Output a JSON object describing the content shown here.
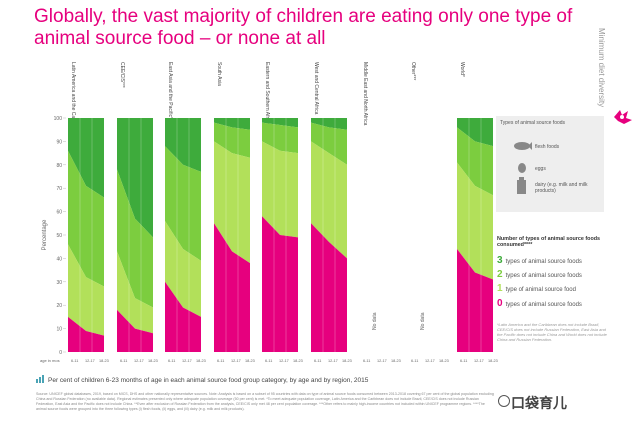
{
  "title": "Globally, the vast majority of children are eating only one type of animal source food – or none at all",
  "side_title": "Minimum diet diversity",
  "colors": {
    "zero": "#e6007e",
    "one": "#b2e05a",
    "two": "#7ccd3f",
    "three": "#3eab3c",
    "title": "#e6007e"
  },
  "chart_data": {
    "type": "area",
    "ylabel": "Percentage",
    "ylim": [
      0,
      100
    ],
    "yticks": [
      0,
      10,
      20,
      30,
      40,
      50,
      60,
      70,
      80,
      90,
      100
    ],
    "age_row_label": "age in mos",
    "age_groups": [
      "6-11",
      "12-17",
      "18-23"
    ],
    "groups": [
      {
        "name": "Latin America and the Caribbean*",
        "zero": [
          15,
          9,
          7
        ],
        "one": [
          46,
          32,
          28
        ],
        "two": [
          86,
          71,
          66
        ]
      },
      {
        "name": "CEE/CIS***",
        "zero": [
          18,
          10,
          8
        ],
        "one": [
          43,
          23,
          19
        ],
        "two": [
          78,
          57,
          49
        ]
      },
      {
        "name": "East Asia and the Pacific*",
        "zero": [
          30,
          19,
          15
        ],
        "one": [
          56,
          44,
          39
        ],
        "two": [
          88,
          80,
          77
        ]
      },
      {
        "name": "South Asia",
        "zero": [
          55,
          43,
          38
        ],
        "one": [
          90,
          85,
          83
        ],
        "two": [
          98,
          96,
          95
        ]
      },
      {
        "name": "Eastern and Southern Africa",
        "zero": [
          58,
          50,
          49
        ],
        "one": [
          90,
          86,
          85
        ],
        "two": [
          98,
          97,
          96
        ]
      },
      {
        "name": "West and Central Africa",
        "zero": [
          55,
          47,
          40
        ],
        "one": [
          90,
          85,
          80
        ],
        "two": [
          98,
          96,
          95
        ]
      },
      {
        "name": "Middle East and North Africa",
        "no_data": "No data"
      },
      {
        "name": "Other***",
        "no_data": "No data"
      },
      {
        "name": "World*",
        "zero": [
          44,
          34,
          31
        ],
        "one": [
          81,
          71,
          67
        ],
        "two": [
          96,
          90,
          88
        ]
      }
    ],
    "legend_food": {
      "title": "Types of animal source foods",
      "items": [
        "flesh foods",
        "eggs",
        "dairy (e.g. milk and milk products)"
      ]
    },
    "legend_count": {
      "title": "Number of types of animal source foods consumed****",
      "items": [
        {
          "num": "3",
          "label": "types of animal source foods"
        },
        {
          "num": "2",
          "label": "types of animal source foods"
        },
        {
          "num": "1",
          "label": "type of animal source food"
        },
        {
          "num": "0",
          "label": "types of animal source foods"
        }
      ]
    },
    "right_note": "*Latin America and the Caribbean does not include Brazil, CEE/CIS does not include Russian Federation, East Asia and the Pacific does not include China and World does not include China and Russian Federation."
  },
  "caption": "Per cent of children 6-23 months of age in each animal source food group category, by age and by region, 2015",
  "sources": "Source: UNICEF global databases, 2019, based on MICS, DHS and other nationally representative sources. Note: Analysis is based on a subset of 95 countries with data on type of animal source foods consumed between 2013-2018 covering 67 per cent of the global population excluding China and Russian Federation (no available data). Regional estimates presented only where adequate population coverage (50 per cent) is met. *To meet adequate population coverage, Latin America and the Caribbean does not include Brazil, CEE/CIS does not include Russian Federation, East Asia and the Pacific does not include China. **Even after exclusion of Russian Federation from the analysis, CEE/CIS only met 48 per cent population coverage. ***Other refers to mainly high-income countries not included within UNICEF programme regions. ****The animal source foods were grouped into the three following types (i) flesh foods, (ii) eggs, and (iii) dairy (e.g. milk and milk products).",
  "watermark": "口袋育儿"
}
